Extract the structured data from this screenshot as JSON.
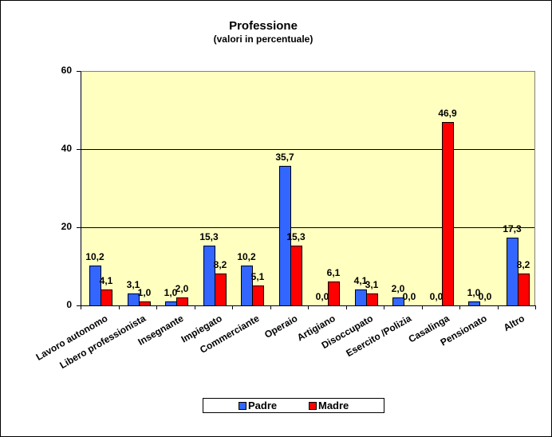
{
  "chart_data": {
    "type": "bar",
    "title": "Professione",
    "subtitle": "(valori in percentuale)",
    "xlabel": "",
    "ylabel": "",
    "ylim": [
      0,
      60
    ],
    "yticks": [
      "0",
      "20",
      "40",
      "60"
    ],
    "grid": true,
    "legend_position": "bottom",
    "categories": [
      "Lavoro autonomo",
      "Libero professionista",
      "Insegnante",
      "Impiegato",
      "Commerciante",
      "Operaio",
      "Artigiano",
      "Disoccupato",
      "Esercito /Polizia",
      "Casalinga",
      "Pensionato",
      "Altro"
    ],
    "series": [
      {
        "name": "Padre",
        "color": "#3366FF",
        "values": [
          10.2,
          3.1,
          1.0,
          15.3,
          10.2,
          35.7,
          0.0,
          4.1,
          2.0,
          0.0,
          1.0,
          17.3
        ],
        "labels": [
          "10,2",
          "3,1",
          "1,0",
          "15,3",
          "10,2",
          "35,7",
          "0,0",
          "4,1",
          "2,0",
          "0,0",
          "1,0",
          "17,3"
        ]
      },
      {
        "name": "Madre",
        "color": "#FF0000",
        "values": [
          4.1,
          1.0,
          2.0,
          8.2,
          5.1,
          15.3,
          6.1,
          3.1,
          0.0,
          46.9,
          0.0,
          8.2
        ],
        "labels": [
          "4,1",
          "1,0",
          "2,0",
          "8,2",
          "5,1",
          "15,3",
          "6,1",
          "3,1",
          "0,0",
          "46,9",
          "0,0",
          "8,2"
        ]
      }
    ]
  },
  "colors": {
    "plot_background": "#FFFFC0",
    "padre": "#3366FF",
    "madre": "#FF0000"
  },
  "legend": {
    "padre": "Padre",
    "madre": "Madre"
  }
}
